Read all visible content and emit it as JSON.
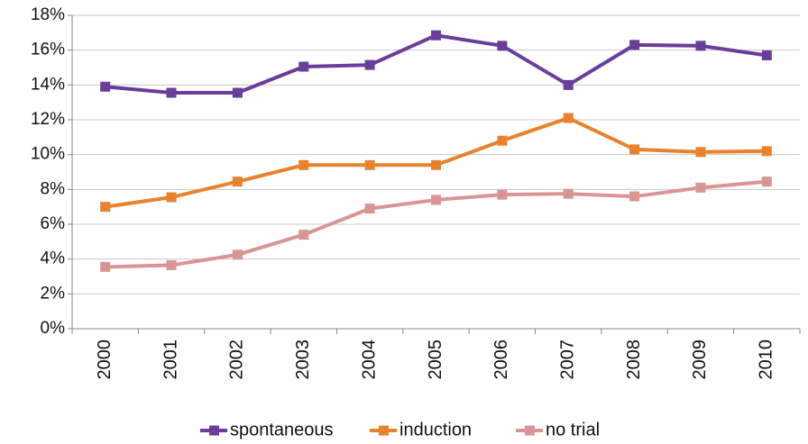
{
  "chart_data": {
    "type": "line",
    "categories": [
      "2000",
      "2001",
      "2002",
      "2003",
      "2004",
      "2005",
      "2006",
      "2007",
      "2008",
      "2009",
      "2010"
    ],
    "series": [
      {
        "name": "spontaneous",
        "color": "#6a3d9a",
        "values": [
          13.9,
          13.55,
          13.55,
          15.05,
          15.15,
          16.85,
          16.25,
          14.0,
          16.3,
          16.25,
          15.7
        ]
      },
      {
        "name": "induction",
        "color": "#e8822c",
        "values": [
          7.0,
          7.55,
          8.45,
          9.4,
          9.4,
          9.4,
          10.8,
          12.1,
          10.3,
          10.15,
          10.2
        ]
      },
      {
        "name": "no trial",
        "color": "#d99594",
        "values": [
          3.55,
          3.65,
          4.25,
          5.4,
          6.9,
          7.4,
          7.7,
          7.75,
          7.6,
          8.1,
          8.45
        ]
      }
    ],
    "ylim": [
      0,
      18
    ],
    "yticks": [
      {
        "value": 0,
        "label": "0%"
      },
      {
        "value": 2,
        "label": "2%"
      },
      {
        "value": 4,
        "label": "4%"
      },
      {
        "value": 6,
        "label": "6%"
      },
      {
        "value": 8,
        "label": "8%"
      },
      {
        "value": 10,
        "label": "10%"
      },
      {
        "value": 12,
        "label": "12%"
      },
      {
        "value": 14,
        "label": "14%"
      },
      {
        "value": 16,
        "label": "16%"
      },
      {
        "value": 18,
        "label": "18%"
      }
    ],
    "grid": true,
    "legend": "bottom"
  }
}
